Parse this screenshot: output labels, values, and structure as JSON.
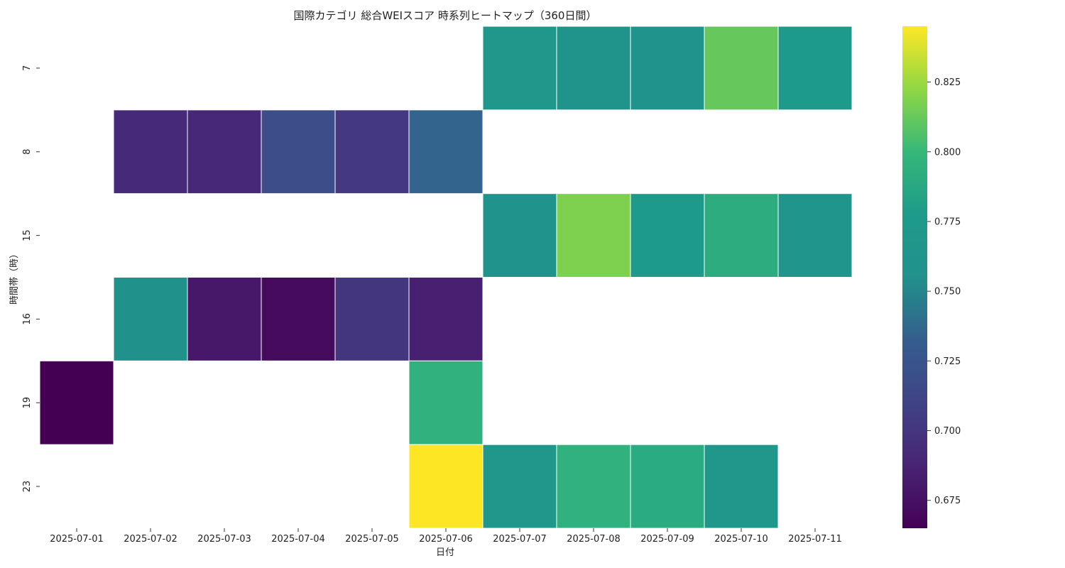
{
  "chart_data": {
    "type": "heatmap",
    "title": "国際カテゴリ 総合WEIスコア 時系列ヒートマップ（360日間）",
    "xlabel": "日付",
    "ylabel": "時間帯（時）",
    "x": [
      "2025-07-01",
      "2025-07-02",
      "2025-07-03",
      "2025-07-04",
      "2025-07-05",
      "2025-07-06",
      "2025-07-07",
      "2025-07-08",
      "2025-07-09",
      "2025-07-10",
      "2025-07-11"
    ],
    "y": [
      "7",
      "8",
      "15",
      "16",
      "19",
      "23"
    ],
    "values": [
      [
        null,
        null,
        null,
        null,
        null,
        null,
        0.768,
        0.762,
        0.76,
        0.812,
        0.775
      ],
      [
        null,
        0.692,
        0.69,
        0.718,
        0.702,
        0.735,
        null,
        null,
        null,
        null,
        null
      ],
      [
        null,
        null,
        null,
        null,
        null,
        null,
        0.76,
        0.818,
        0.775,
        0.792,
        0.765
      ],
      [
        null,
        0.756,
        0.68,
        0.672,
        0.7,
        0.685,
        null,
        null,
        null,
        null,
        null
      ],
      [
        0.665,
        null,
        null,
        null,
        null,
        0.795,
        null,
        null,
        null,
        null,
        null
      ],
      [
        null,
        null,
        null,
        null,
        null,
        0.845,
        0.77,
        0.795,
        0.79,
        0.768,
        null
      ]
    ],
    "colorscale": "viridis",
    "vmin": 0.665,
    "vmax": 0.845,
    "colorbar_ticks": [
      0.675,
      0.7,
      0.725,
      0.75,
      0.775,
      0.8,
      0.825
    ],
    "colorbar_tick_labels": [
      "0.675",
      "0.700",
      "0.725",
      "0.750",
      "0.775",
      "0.800",
      "0.825"
    ]
  }
}
